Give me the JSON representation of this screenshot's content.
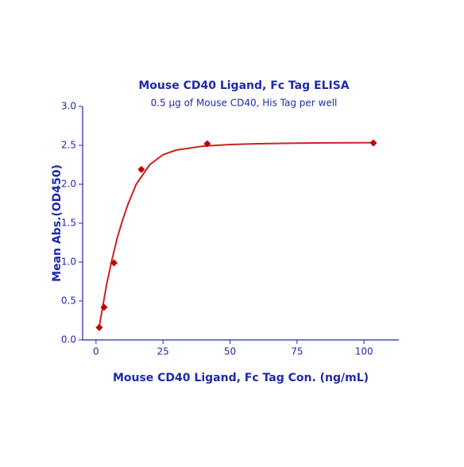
{
  "chart_data": {
    "type": "scatter",
    "title": "Mouse CD40 Ligand, Fc Tag ELISA",
    "subtitle": "0.5 µg of Mouse CD40, His Tag per well",
    "x_label": "Mouse CD40 Ligand, Fc Tag Con. (ng/mL)",
    "y_label": "Mean Abs.(OD450)",
    "xlim": [
      -5,
      113
    ],
    "xticks": [
      0,
      25,
      50,
      75,
      100
    ],
    "ylim": [
      0,
      3.0
    ],
    "yticks": [
      {
        "value": 0,
        "label": "0.0"
      },
      {
        "value": 0.5,
        "label": "0.5"
      },
      {
        "value": 1,
        "label": "1.0"
      },
      {
        "value": 1.5,
        "label": "1.5"
      },
      {
        "value": 2,
        "label": "2.0"
      },
      {
        "value": 2.5,
        "label": "2.5"
      },
      {
        "value": 3,
        "label": "3.0"
      }
    ],
    "axis_color": "#1f2aa8",
    "text_color": "#1f2aa8",
    "series": [
      {
        "type": "scatter",
        "color": "#c00000",
        "x": [
          1.2,
          3.0,
          6.7,
          16.9,
          41.5,
          103.5
        ],
        "values": [
          0.16,
          0.42,
          0.99,
          2.19,
          2.52,
          2.53
        ]
      },
      {
        "type": "line",
        "color": "#cc2222",
        "x": [
          1,
          2,
          4,
          6,
          8,
          10,
          12,
          15,
          20,
          25,
          30,
          40,
          50,
          60,
          80,
          103.5
        ],
        "values": [
          0.13,
          0.33,
          0.72,
          1.04,
          1.32,
          1.55,
          1.75,
          2.0,
          2.25,
          2.38,
          2.44,
          2.49,
          2.51,
          2.52,
          2.53,
          2.535
        ]
      }
    ]
  }
}
